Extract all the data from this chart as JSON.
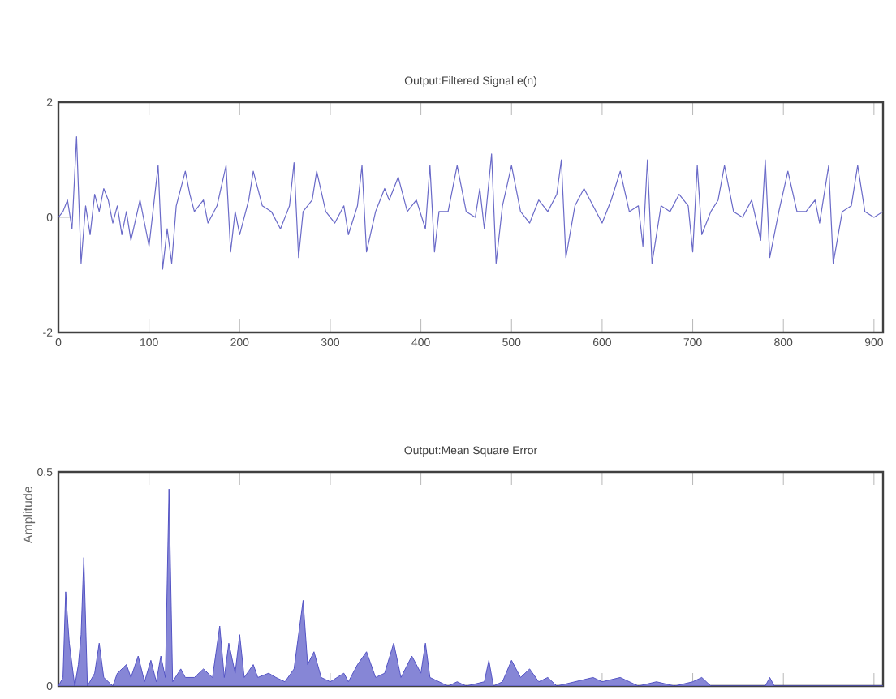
{
  "chart_data": [
    {
      "type": "line",
      "title": "Output:Filtered Signal e(n)",
      "xlim": [
        0,
        910
      ],
      "ylim": [
        -2,
        2
      ],
      "xticks": [
        0,
        100,
        200,
        300,
        400,
        500,
        600,
        700,
        800,
        900
      ],
      "yticks": [
        -2,
        0,
        2
      ],
      "grid": false,
      "series": [
        {
          "color": "#6a6ac8",
          "x": [
            0,
            5,
            10,
            15,
            20,
            25,
            30,
            35,
            40,
            45,
            50,
            55,
            60,
            65,
            70,
            75,
            80,
            90,
            100,
            110,
            115,
            120,
            125,
            130,
            140,
            145,
            150,
            160,
            165,
            175,
            185,
            190,
            195,
            200,
            210,
            215,
            225,
            235,
            245,
            255,
            260,
            265,
            270,
            280,
            285,
            295,
            305,
            315,
            320,
            330,
            335,
            340,
            350,
            360,
            365,
            375,
            385,
            395,
            405,
            410,
            415,
            420,
            430,
            440,
            450,
            460,
            465,
            470,
            478,
            483,
            490,
            500,
            510,
            520,
            530,
            540,
            550,
            555,
            560,
            570,
            580,
            590,
            600,
            610,
            620,
            630,
            640,
            645,
            650,
            655,
            665,
            675,
            685,
            695,
            700,
            705,
            710,
            720,
            728,
            735,
            745,
            755,
            765,
            775,
            780,
            785,
            795,
            805,
            815,
            825,
            835,
            840,
            850,
            855,
            865,
            875,
            882,
            890,
            900,
            910
          ],
          "values": [
            0,
            0.1,
            0.3,
            -0.2,
            1.4,
            -0.8,
            0.2,
            -0.3,
            0.4,
            0.1,
            0.5,
            0.3,
            -0.1,
            0.2,
            -0.3,
            0.1,
            -0.4,
            0.3,
            -0.5,
            0.9,
            -0.9,
            -0.2,
            -0.8,
            0.2,
            0.8,
            0.4,
            0.1,
            0.3,
            -0.1,
            0.2,
            0.9,
            -0.6,
            0.1,
            -0.3,
            0.3,
            0.8,
            0.2,
            0.1,
            -0.2,
            0.2,
            0.95,
            -0.7,
            0.1,
            0.3,
            0.8,
            0.1,
            -0.1,
            0.2,
            -0.3,
            0.2,
            0.9,
            -0.6,
            0.1,
            0.5,
            0.3,
            0.7,
            0.1,
            0.3,
            -0.2,
            0.9,
            -0.6,
            0.1,
            0.1,
            0.9,
            0.1,
            0,
            0.5,
            -0.2,
            1.1,
            -0.8,
            0.2,
            0.9,
            0.1,
            -0.1,
            0.3,
            0.1,
            0.4,
            1.0,
            -0.7,
            0.2,
            0.5,
            0.2,
            -0.1,
            0.3,
            0.8,
            0.1,
            0.2,
            -0.5,
            1.0,
            -0.8,
            0.2,
            0.1,
            0.4,
            0.2,
            -0.6,
            0.9,
            -0.3,
            0.1,
            0.3,
            0.9,
            0.1,
            0,
            0.3,
            -0.4,
            1.0,
            -0.7,
            0.1,
            0.8,
            0.1,
            0.1,
            0.3,
            -0.1,
            0.9,
            -0.8,
            0.1,
            0.2,
            0.9,
            0.1,
            0,
            0.1
          ]
        }
      ]
    },
    {
      "type": "area",
      "title": "Output:Mean Square Error",
      "ylabel": "Amplitude",
      "xlim": [
        0,
        910
      ],
      "ylim": [
        0,
        0.5
      ],
      "xticks": [
        0,
        100,
        200,
        300,
        400,
        500,
        600,
        700,
        800,
        900
      ],
      "yticks": [
        0,
        0.5
      ],
      "tick_labels": "y",
      "grid": false,
      "series": [
        {
          "color": "#5252c4",
          "x": [
            0,
            5,
            8,
            12,
            18,
            22,
            25,
            28,
            32,
            40,
            45,
            50,
            60,
            65,
            75,
            80,
            88,
            95,
            102,
            108,
            113,
            118,
            122,
            126,
            135,
            140,
            150,
            160,
            170,
            178,
            183,
            188,
            195,
            200,
            205,
            215,
            220,
            232,
            240,
            250,
            260,
            270,
            275,
            282,
            290,
            300,
            315,
            320,
            330,
            340,
            350,
            360,
            370,
            378,
            390,
            400,
            405,
            410,
            420,
            430,
            440,
            450,
            470,
            475,
            480,
            490,
            500,
            510,
            520,
            530,
            540,
            550,
            570,
            590,
            600,
            620,
            640,
            660,
            680,
            700,
            710,
            720,
            780,
            785,
            790,
            900,
            910
          ],
          "values": [
            0,
            0.02,
            0.22,
            0.1,
            0,
            0.05,
            0.12,
            0.3,
            0,
            0.03,
            0.1,
            0.02,
            0,
            0.03,
            0.05,
            0.02,
            0.07,
            0.01,
            0.06,
            0.01,
            0.07,
            0.02,
            0.46,
            0.01,
            0.04,
            0.02,
            0.02,
            0.04,
            0.02,
            0.14,
            0.02,
            0.1,
            0.03,
            0.12,
            0.02,
            0.05,
            0.02,
            0.03,
            0.02,
            0.01,
            0.04,
            0.2,
            0.05,
            0.08,
            0.02,
            0.01,
            0.03,
            0.01,
            0.05,
            0.08,
            0.02,
            0.03,
            0.1,
            0.02,
            0.07,
            0.03,
            0.1,
            0.02,
            0.01,
            0,
            0.01,
            0,
            0.01,
            0.06,
            0,
            0.01,
            0.06,
            0.02,
            0.04,
            0.01,
            0.02,
            0,
            0.01,
            0.02,
            0.01,
            0.02,
            0,
            0.01,
            0,
            0.01,
            0.02,
            0,
            0,
            0.02,
            0,
            0,
            0
          ]
        }
      ]
    }
  ]
}
